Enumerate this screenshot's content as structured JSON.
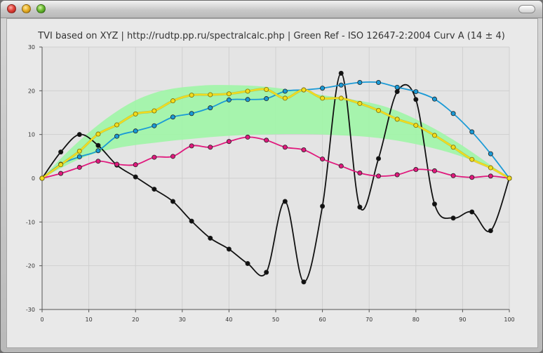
{
  "window": {
    "controls": [
      "close-button",
      "minimize-button",
      "zoom-button",
      "toolbar-toggle-button"
    ]
  },
  "chart_data": {
    "type": "line",
    "title": "TVI based on XYZ | http://rudtp.pp.ru/spectralcalc.php | Green Ref - ISO 12647-2:2004 Curv A (14 ± 4)",
    "xlim": [
      0,
      100
    ],
    "ylim": [
      -30,
      30
    ],
    "x_ticks": [
      0,
      10,
      20,
      30,
      40,
      50,
      60,
      70,
      80,
      90,
      100
    ],
    "y_ticks": [
      30,
      20,
      10,
      0,
      -10,
      -20,
      -30
    ],
    "x_tick_labels": [
      "0",
      "10",
      "20",
      "30",
      "40",
      "50",
      "60",
      "70",
      "80",
      "90",
      "100"
    ],
    "y_tick_labels": [
      "30",
      "20",
      "10",
      "0",
      "-10",
      "-20",
      "-30"
    ],
    "grid": true,
    "colors": {
      "black": "#111111",
      "cyan": "#1a9ad6",
      "magenta": "#e0197d",
      "yellow": "#f2dc1d",
      "tolerance_band": "#9ef5a6"
    },
    "band": {
      "x": [
        0,
        4,
        8,
        12,
        16,
        20,
        24,
        28,
        32,
        36,
        40,
        44,
        48,
        52,
        56,
        60,
        64,
        68,
        72,
        76,
        80,
        84,
        88,
        92,
        96,
        100
      ],
      "upper": [
        0,
        4.5,
        8.6,
        12.2,
        15.3,
        17.8,
        19.5,
        20.5,
        21.0,
        21.3,
        21.3,
        21.2,
        20.9,
        20.4,
        19.8,
        19.0,
        18.4,
        17.7,
        16.8,
        15.4,
        13.5,
        11.3,
        8.8,
        6.0,
        3.0,
        0
      ],
      "lower": [
        0,
        2.3,
        4.4,
        5.9,
        6.9,
        7.6,
        8.1,
        8.6,
        9.0,
        9.4,
        9.7,
        9.9,
        10.0,
        10.1,
        10.1,
        10.0,
        9.8,
        9.6,
        9.2,
        8.6,
        7.8,
        6.8,
        5.6,
        4.1,
        2.2,
        0
      ]
    },
    "series": [
      {
        "color": "black",
        "x": [
          0,
          4,
          8,
          12,
          16,
          20,
          24,
          28,
          32,
          36,
          40,
          44,
          48,
          52,
          56,
          60,
          64,
          68,
          72,
          76,
          80,
          84,
          88,
          92,
          96,
          100
        ],
        "values": [
          0,
          6,
          10,
          7.5,
          3,
          0.3,
          -2.5,
          -5.3,
          -9.8,
          -13.7,
          -16.2,
          -19.5,
          -21.5,
          -5.3,
          -23.7,
          -6.4,
          24,
          -6.6,
          4.5,
          19.8,
          18,
          -5.9,
          -9.1,
          -7.7,
          -12,
          0
        ]
      },
      {
        "color": "cyan",
        "x": [
          0,
          4,
          8,
          12,
          16,
          20,
          24,
          28,
          32,
          36,
          40,
          44,
          48,
          52,
          56,
          60,
          64,
          68,
          72,
          76,
          80,
          84,
          88,
          92,
          96,
          100
        ],
        "values": [
          0,
          3.2,
          4.9,
          6.3,
          9.6,
          10.8,
          12,
          14,
          14.8,
          16.1,
          17.9,
          18,
          18.2,
          19.9,
          20.2,
          20.6,
          21.3,
          21.9,
          21.9,
          20.8,
          19.8,
          18.1,
          14.8,
          10.6,
          5.6,
          0
        ]
      },
      {
        "color": "magenta",
        "x": [
          0,
          4,
          8,
          12,
          16,
          20,
          24,
          28,
          32,
          36,
          40,
          44,
          48,
          52,
          56,
          60,
          64,
          68,
          72,
          76,
          80,
          84,
          88,
          92,
          96,
          100
        ],
        "values": [
          0,
          1.1,
          2.5,
          3.9,
          3.2,
          3.1,
          4.8,
          5,
          7.4,
          7.1,
          8.4,
          9.4,
          8.7,
          7.1,
          6.5,
          4.4,
          2.8,
          1.2,
          0.5,
          0.8,
          2,
          1.7,
          0.6,
          0.2,
          0.5,
          0
        ]
      },
      {
        "color": "yellow",
        "x": [
          0,
          4,
          8,
          12,
          16,
          20,
          24,
          28,
          32,
          36,
          40,
          44,
          48,
          52,
          56,
          60,
          64,
          68,
          72,
          76,
          80,
          84,
          88,
          92,
          96,
          100
        ],
        "values": [
          0,
          3.1,
          6.2,
          10.1,
          12.2,
          14.7,
          15.4,
          17.7,
          19,
          19.1,
          19.3,
          19.9,
          20.3,
          18.3,
          20.2,
          18.3,
          18.3,
          17.1,
          15.5,
          13.5,
          12.1,
          9.8,
          7.1,
          4.3,
          2.4,
          0
        ]
      }
    ]
  }
}
